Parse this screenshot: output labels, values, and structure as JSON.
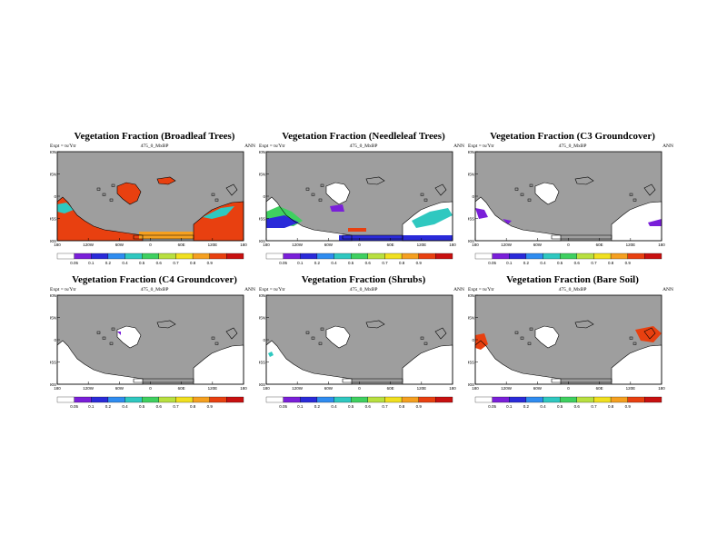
{
  "chart_data": [
    {
      "type": "map",
      "title": "Vegetation Fraction (Broadleaf Trees)",
      "expt_label": "Expt = ts/Ytr",
      "run_label": "475_0_MxBP",
      "season": "ANN",
      "lat_ticks": [
        "90N",
        "45N",
        "0",
        "45S",
        "90S"
      ],
      "lon_ticks": [
        "180",
        "120W",
        "60W",
        "0",
        "60E",
        "120E",
        "180"
      ],
      "colorbar_labels": [
        "0.05",
        "0.1",
        "0.2",
        "0.4",
        "0.5",
        "0.6",
        "0.7",
        "0.8",
        "0.9"
      ],
      "colors": [
        "#ffffff",
        "#7a1fd9",
        "#2a2ad9",
        "#2f8cf0",
        "#2fc8c0",
        "#3fd060",
        "#b8e040",
        "#f0e020",
        "#f5a020",
        "#e84010",
        "#c81010"
      ],
      "land_pattern": "broadleaf"
    },
    {
      "type": "map",
      "title": "Vegetation Fraction (Needleleaf Trees)",
      "expt_label": "Expt = ts/Ytr",
      "run_label": "475_0_MxBP",
      "season": "ANN",
      "lat_ticks": [
        "90N",
        "45N",
        "0",
        "45S",
        "90S"
      ],
      "lon_ticks": [
        "180",
        "120W",
        "60W",
        "0",
        "60E",
        "120E",
        "180"
      ],
      "colorbar_labels": [
        "0.05",
        "0.1",
        "0.2",
        "0.4",
        "0.5",
        "0.6",
        "0.7",
        "0.8",
        "0.9"
      ],
      "colors": [
        "#ffffff",
        "#7a1fd9",
        "#2a2ad9",
        "#2f8cf0",
        "#2fc8c0",
        "#3fd060",
        "#b8e040",
        "#f0e020",
        "#f5a020",
        "#e84010",
        "#c81010"
      ],
      "land_pattern": "needleleaf"
    },
    {
      "type": "map",
      "title": "Vegetation Fraction (C3 Groundcover)",
      "expt_label": "Expt = ts/Ytr",
      "run_label": "475_0_MxBP",
      "season": "ANN",
      "lat_ticks": [
        "90N",
        "45N",
        "0",
        "45S",
        "90S"
      ],
      "lon_ticks": [
        "180",
        "120W",
        "60W",
        "0",
        "60E",
        "120E",
        "180"
      ],
      "colorbar_labels": [
        "0.05",
        "0.1",
        "0.2",
        "0.4",
        "0.5",
        "0.6",
        "0.7",
        "0.8",
        "0.9"
      ],
      "colors": [
        "#ffffff",
        "#7a1fd9",
        "#2a2ad9",
        "#2f8cf0",
        "#2fc8c0",
        "#3fd060",
        "#b8e040",
        "#f0e020",
        "#f5a020",
        "#e84010",
        "#c81010"
      ],
      "land_pattern": "c3"
    },
    {
      "type": "map",
      "title": "Vegetation Fraction (C4 Groundcover)",
      "expt_label": "Expt = ts/Ytr",
      "run_label": "475_0_MxBP",
      "season": "ANN",
      "lat_ticks": [
        "90N",
        "45N",
        "0",
        "45S",
        "90S"
      ],
      "lon_ticks": [
        "180",
        "120W",
        "60W",
        "0",
        "60E",
        "120E",
        "180"
      ],
      "colorbar_labels": [
        "0.05",
        "0.1",
        "0.2",
        "0.4",
        "0.5",
        "0.6",
        "0.7",
        "0.8",
        "0.9"
      ],
      "colors": [
        "#ffffff",
        "#7a1fd9",
        "#2a2ad9",
        "#2f8cf0",
        "#2fc8c0",
        "#3fd060",
        "#b8e040",
        "#f0e020",
        "#f5a020",
        "#e84010",
        "#c81010"
      ],
      "land_pattern": "c4"
    },
    {
      "type": "map",
      "title": "Vegetation Fraction (Shrubs)",
      "expt_label": "Expt = ts/Ytr",
      "run_label": "475_0_MxBP",
      "season": "ANN",
      "lat_ticks": [
        "90N",
        "45N",
        "0",
        "45S",
        "90S"
      ],
      "lon_ticks": [
        "180",
        "120W",
        "60W",
        "0",
        "60E",
        "120E",
        "180"
      ],
      "colorbar_labels": [
        "0.05",
        "0.1",
        "0.2",
        "0.4",
        "0.5",
        "0.6",
        "0.7",
        "0.8",
        "0.9"
      ],
      "colors": [
        "#ffffff",
        "#7a1fd9",
        "#2a2ad9",
        "#2f8cf0",
        "#2fc8c0",
        "#3fd060",
        "#b8e040",
        "#f0e020",
        "#f5a020",
        "#e84010",
        "#c81010"
      ],
      "land_pattern": "shrubs"
    },
    {
      "type": "map",
      "title": "Vegetation Fraction (Bare Soil)",
      "expt_label": "Expt = ts/Ytr",
      "run_label": "475_0_MxBP",
      "season": "ANN",
      "lat_ticks": [
        "90N",
        "45N",
        "0",
        "45S",
        "90S"
      ],
      "lon_ticks": [
        "180",
        "120W",
        "60W",
        "0",
        "60E",
        "120E",
        "180"
      ],
      "colorbar_labels": [
        "0.05",
        "0.1",
        "0.2",
        "0.4",
        "0.5",
        "0.6",
        "0.7",
        "0.8",
        "0.9"
      ],
      "colors": [
        "#ffffff",
        "#7a1fd9",
        "#2a2ad9",
        "#2f8cf0",
        "#2fc8c0",
        "#3fd060",
        "#b8e040",
        "#f0e020",
        "#f5a020",
        "#e84010",
        "#c81010"
      ],
      "land_pattern": "bare"
    }
  ]
}
